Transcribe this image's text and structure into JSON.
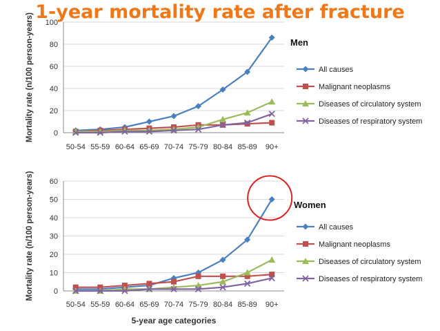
{
  "page": {
    "title": "1-year mortality rate after fracture"
  },
  "colors": {
    "all_causes": "#4a7fc1",
    "malignant": "#c0504d",
    "circulatory": "#9bbb59",
    "respiratory": "#8064a2",
    "title": "#f07818",
    "highlight_circle": "#e02020"
  },
  "chart_data": [
    {
      "type": "line",
      "panel_label": "Men",
      "ylabel": "Mortality rate (n/100 person-years)",
      "xlabel": "",
      "categories": [
        "50-54",
        "55-59",
        "60-64",
        "65-69",
        "70-74",
        "75-79",
        "80-84",
        "85-89",
        "90+"
      ],
      "yticks": [
        0,
        20,
        40,
        60,
        80,
        100
      ],
      "ylim": [
        0,
        100
      ],
      "grid": true,
      "legend_position": "right",
      "series": [
        {
          "name": "All causes",
          "values": [
            2,
            3,
            5,
            10,
            15,
            24,
            39,
            55,
            86
          ]
        },
        {
          "name": "Malignant neoplasms",
          "values": [
            1,
            2,
            3,
            4,
            5,
            7,
            7,
            8,
            9
          ]
        },
        {
          "name": "Diseases of circulatory system",
          "values": [
            1,
            1,
            2,
            2,
            3,
            5,
            12,
            18,
            28
          ]
        },
        {
          "name": "Diseases of respiratory system",
          "values": [
            0,
            0,
            1,
            1,
            2,
            3,
            7,
            9,
            17
          ]
        }
      ]
    },
    {
      "type": "line",
      "panel_label": "Women",
      "ylabel": "Mortality rate (n/100 person-years)",
      "xlabel": "5-year age categories",
      "categories": [
        "50-54",
        "55-59",
        "60-64",
        "65-69",
        "70-74",
        "75-79",
        "80-84",
        "85-89",
        "90+"
      ],
      "yticks": [
        0,
        10,
        20,
        30,
        40,
        50,
        60
      ],
      "ylim": [
        0,
        60
      ],
      "grid": true,
      "legend_position": "right",
      "highlight": {
        "series": "All causes",
        "category": "90+",
        "shape": "circle"
      },
      "series": [
        {
          "name": "All causes",
          "values": [
            1,
            1,
            2,
            3,
            7,
            10,
            17,
            28,
            50
          ]
        },
        {
          "name": "Malignant neoplasms",
          "values": [
            2,
            2,
            3,
            4,
            5,
            8,
            8,
            8,
            9
          ]
        },
        {
          "name": "Diseases of circulatory system",
          "values": [
            0,
            0,
            1,
            1,
            2,
            3,
            5,
            10,
            17
          ]
        },
        {
          "name": "Diseases of respiratory system",
          "values": [
            0,
            0,
            0,
            1,
            1,
            1,
            2,
            4,
            7
          ]
        }
      ]
    }
  ]
}
